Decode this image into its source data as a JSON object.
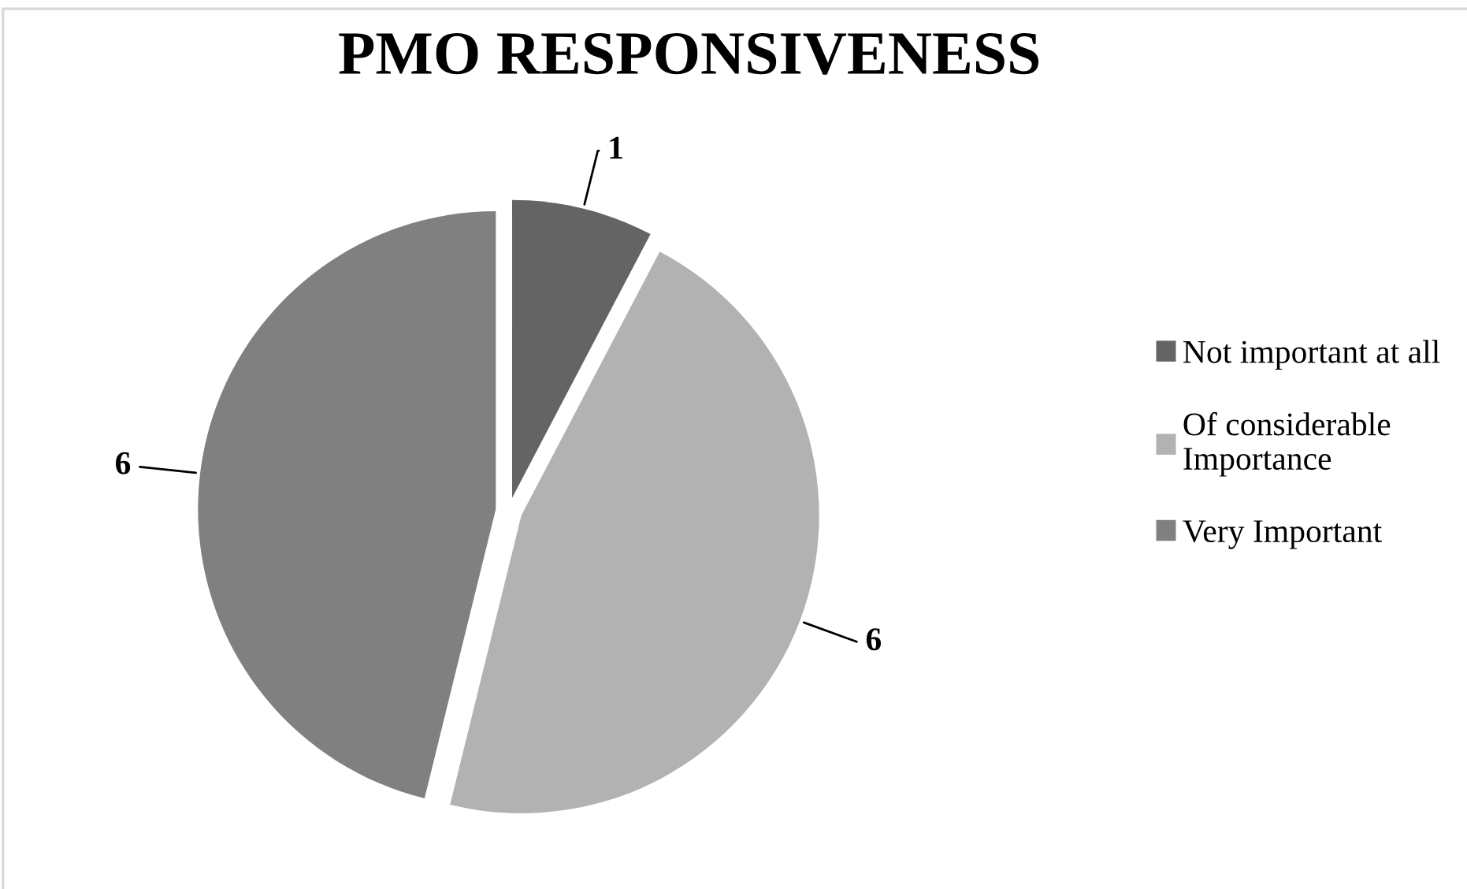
{
  "chart_data": {
    "type": "pie",
    "title": "PMO RESPONSIVENESS",
    "categories": [
      "Not important at all",
      "Of considerable\nImportance",
      "Very Important"
    ],
    "values": [
      1,
      6,
      6
    ],
    "colors": [
      "#646464",
      "#b2b2b2",
      "#808080"
    ],
    "data_labels": true,
    "legend": "right"
  }
}
